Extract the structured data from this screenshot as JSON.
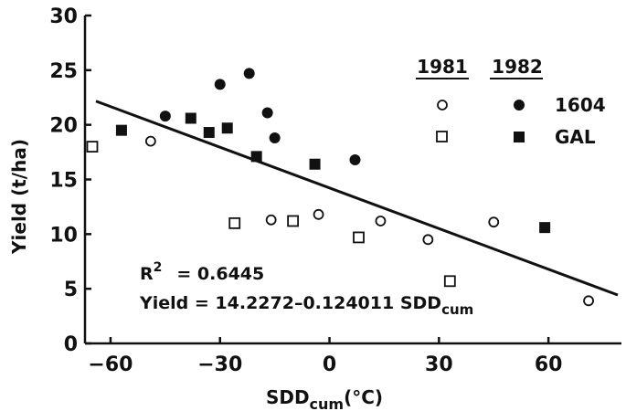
{
  "chart_data": {
    "type": "scatter",
    "title": "",
    "xlabel": "SDD",
    "xlabel_sub": "cum",
    "xlabel_unit": "(°C)",
    "ylabel": "Yield  (t/ha)",
    "xlim": [
      -67,
      80
    ],
    "ylim": [
      0,
      30
    ],
    "xticks": [
      -60,
      -30,
      0,
      30,
      60
    ],
    "yticks": [
      0,
      5,
      10,
      15,
      20,
      25,
      30
    ],
    "grid": false,
    "legend": {
      "placement": "top-right",
      "year_headers": [
        "1981",
        "1982"
      ],
      "rows": [
        {
          "name": "1604"
        },
        {
          "name": "GAL"
        }
      ]
    },
    "series": [
      {
        "name": "1604 1981",
        "marker": "open-circle",
        "points": [
          [
            -49,
            18.5
          ],
          [
            -16,
            11.3
          ],
          [
            -3,
            11.8
          ],
          [
            14,
            11.2
          ],
          [
            27,
            9.5
          ],
          [
            45,
            11.1
          ],
          [
            71,
            3.9
          ]
        ]
      },
      {
        "name": "1604 1982",
        "marker": "filled-circle",
        "points": [
          [
            -45,
            20.8
          ],
          [
            -30,
            23.7
          ],
          [
            -22,
            24.7
          ],
          [
            -17,
            21.1
          ],
          [
            -15,
            18.8
          ],
          [
            7,
            16.8
          ]
        ]
      },
      {
        "name": "GAL 1981",
        "marker": "open-square",
        "points": [
          [
            -65,
            18.0
          ],
          [
            -26,
            11.0
          ],
          [
            -10,
            11.2
          ],
          [
            8,
            9.7
          ],
          [
            33,
            5.7
          ]
        ]
      },
      {
        "name": "GAL 1982",
        "marker": "filled-square",
        "points": [
          [
            -57,
            19.5
          ],
          [
            -38,
            20.6
          ],
          [
            -33,
            19.3
          ],
          [
            -28,
            19.7
          ],
          [
            -20,
            17.1
          ],
          [
            -4,
            16.4
          ],
          [
            59,
            10.6
          ]
        ]
      }
    ],
    "regression_line": {
      "intercept": 14.2272,
      "slope": -0.124011,
      "x_range": [
        -64,
        79
      ]
    },
    "annotations": {
      "r2_label": "R",
      "r2_sup": "2",
      "r2_value": "= 0.6445",
      "equation_prefix": "Yield = 14.2272–0.124011 SDD",
      "equation_sub": "cum"
    }
  }
}
